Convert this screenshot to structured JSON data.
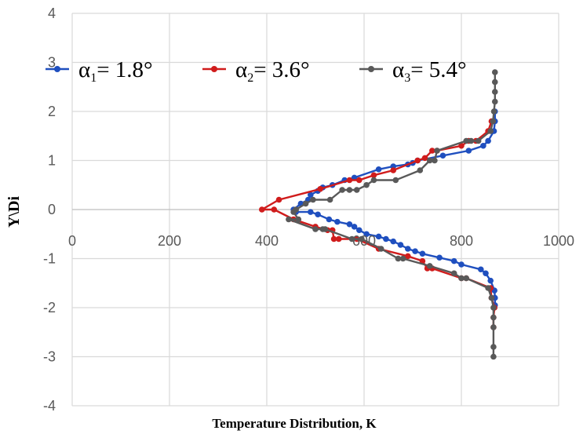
{
  "chart_data": {
    "type": "scatter",
    "title": "",
    "xlabel": "Temperature Distribution, K",
    "ylabel": "Y\\Di",
    "xlim": [
      0,
      1000
    ],
    "ylim": [
      -4,
      4
    ],
    "x_ticks": [
      "0",
      "200",
      "400",
      "600",
      "800",
      "1000"
    ],
    "y_ticks": [
      "4",
      "3",
      "2",
      "1",
      "0",
      "-1",
      "-2",
      "-3",
      "-4"
    ],
    "grid": "vertical and horizontal",
    "legend_position": "top",
    "series": [
      {
        "name": "α1= 1.8°",
        "label_base": "α",
        "label_sub": "1",
        "label_rest": "= 1.8°",
        "color": "#1f4fbf",
        "points": [
          [
            869,
            2.0
          ],
          [
            869,
            1.8
          ],
          [
            867,
            1.6
          ],
          [
            855,
            1.4
          ],
          [
            845,
            1.3
          ],
          [
            815,
            1.2
          ],
          [
            762,
            1.1
          ],
          [
            710,
            1.0
          ],
          [
            700,
            0.95
          ],
          [
            690,
            0.92
          ],
          [
            660,
            0.88
          ],
          [
            630,
            0.82
          ],
          [
            580,
            0.65
          ],
          [
            560,
            0.6
          ],
          [
            535,
            0.5
          ],
          [
            515,
            0.45
          ],
          [
            505,
            0.38
          ],
          [
            490,
            0.3
          ],
          [
            485,
            0.2
          ],
          [
            470,
            0.12
          ],
          [
            455,
            0.0
          ],
          [
            460,
            -0.05
          ],
          [
            490,
            -0.05
          ],
          [
            505,
            -0.1
          ],
          [
            528,
            -0.2
          ],
          [
            545,
            -0.25
          ],
          [
            570,
            -0.3
          ],
          [
            580,
            -0.35
          ],
          [
            590,
            -0.42
          ],
          [
            605,
            -0.5
          ],
          [
            630,
            -0.55
          ],
          [
            645,
            -0.6
          ],
          [
            660,
            -0.65
          ],
          [
            675,
            -0.72
          ],
          [
            690,
            -0.8
          ],
          [
            705,
            -0.85
          ],
          [
            720,
            -0.9
          ],
          [
            755,
            -0.98
          ],
          [
            785,
            -1.05
          ],
          [
            800,
            -1.12
          ],
          [
            840,
            -1.22
          ],
          [
            850,
            -1.3
          ],
          [
            860,
            -1.45
          ],
          [
            868,
            -1.65
          ],
          [
            869,
            -1.8
          ],
          [
            869,
            -1.95
          ]
        ]
      },
      {
        "name": "α2= 3.6°",
        "label_base": "α",
        "label_sub": "2",
        "label_rest": "= 3.6°",
        "color": "#d01c1c",
        "points": [
          [
            862,
            1.8
          ],
          [
            855,
            1.6
          ],
          [
            830,
            1.4
          ],
          [
            815,
            1.4
          ],
          [
            800,
            1.3
          ],
          [
            750,
            1.2
          ],
          [
            740,
            1.2
          ],
          [
            725,
            1.05
          ],
          [
            710,
            1.0
          ],
          [
            660,
            0.8
          ],
          [
            620,
            0.7
          ],
          [
            590,
            0.6
          ],
          [
            570,
            0.6
          ],
          [
            510,
            0.42
          ],
          [
            425,
            0.2
          ],
          [
            390,
            0.0
          ],
          [
            415,
            0.0
          ],
          [
            455,
            -0.2
          ],
          [
            500,
            -0.35
          ],
          [
            525,
            -0.42
          ],
          [
            535,
            -0.42
          ],
          [
            538,
            -0.6
          ],
          [
            548,
            -0.6
          ],
          [
            585,
            -0.6
          ],
          [
            630,
            -0.8
          ],
          [
            690,
            -0.95
          ],
          [
            720,
            -1.05
          ],
          [
            730,
            -1.2
          ],
          [
            740,
            -1.2
          ],
          [
            800,
            -1.4
          ],
          [
            810,
            -1.4
          ],
          [
            860,
            -1.6
          ],
          [
            862,
            -1.8
          ],
          [
            868,
            -2.0
          ],
          [
            866,
            -2.2
          ],
          [
            866,
            -2.4
          ]
        ]
      },
      {
        "name": "α3= 5.4°",
        "label_base": "α",
        "label_sub": "3",
        "label_rest": "= 5.4°",
        "color": "#595959",
        "points": [
          [
            869,
            2.8
          ],
          [
            869,
            2.6
          ],
          [
            869,
            2.4
          ],
          [
            869,
            2.2
          ],
          [
            867,
            2.0
          ],
          [
            865,
            1.8
          ],
          [
            860,
            1.6
          ],
          [
            835,
            1.4
          ],
          [
            820,
            1.4
          ],
          [
            810,
            1.4
          ],
          [
            750,
            1.2
          ],
          [
            745,
            1.0
          ],
          [
            735,
            1.0
          ],
          [
            715,
            0.8
          ],
          [
            665,
            0.6
          ],
          [
            620,
            0.6
          ],
          [
            605,
            0.5
          ],
          [
            585,
            0.4
          ],
          [
            570,
            0.4
          ],
          [
            555,
            0.4
          ],
          [
            530,
            0.2
          ],
          [
            495,
            0.2
          ],
          [
            480,
            0.12
          ],
          [
            460,
            0.0
          ],
          [
            455,
            -0.05
          ],
          [
            465,
            -0.2
          ],
          [
            445,
            -0.2
          ],
          [
            500,
            -0.4
          ],
          [
            515,
            -0.4
          ],
          [
            520,
            -0.4
          ],
          [
            575,
            -0.6
          ],
          [
            595,
            -0.6
          ],
          [
            635,
            -0.8
          ],
          [
            670,
            -1.0
          ],
          [
            680,
            -1.0
          ],
          [
            735,
            -1.15
          ],
          [
            785,
            -1.3
          ],
          [
            800,
            -1.4
          ],
          [
            810,
            -1.4
          ],
          [
            855,
            -1.6
          ],
          [
            862,
            -1.8
          ],
          [
            866,
            -2.0
          ],
          [
            866,
            -2.2
          ],
          [
            866,
            -2.4
          ],
          [
            866,
            -2.8
          ],
          [
            866,
            -3.0
          ]
        ]
      }
    ]
  }
}
